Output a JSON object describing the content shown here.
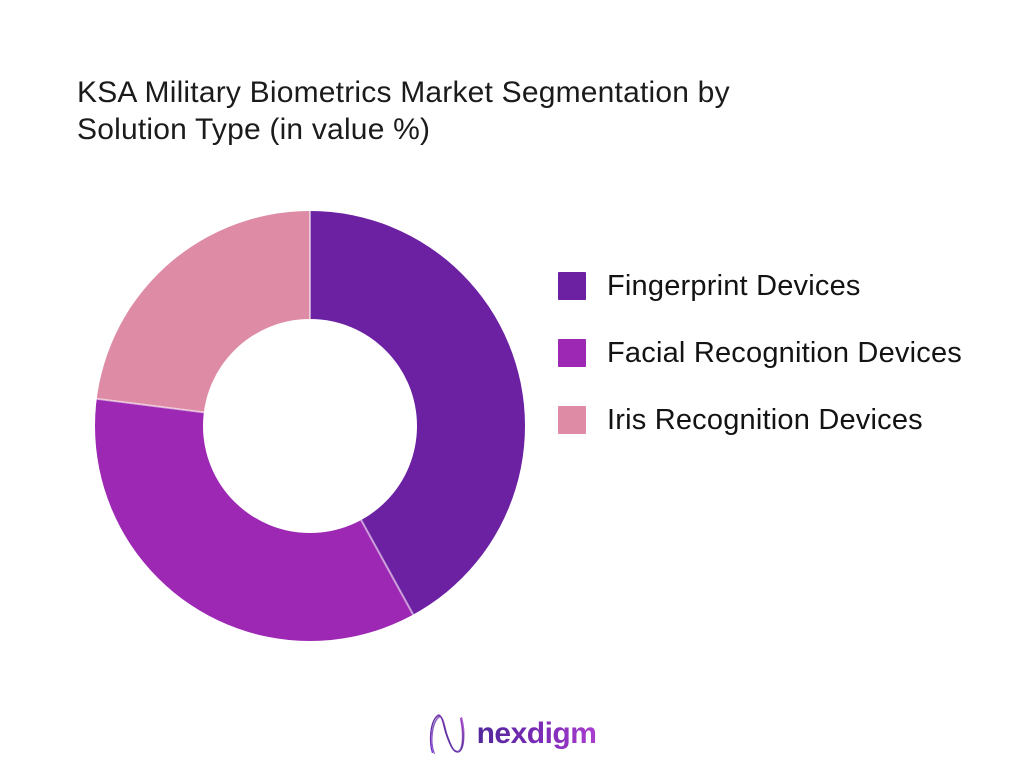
{
  "title": {
    "line1": "KSA Military Biometrics Market Segmentation by",
    "line2": "Solution Type (in value %)"
  },
  "chart_data": {
    "type": "pie",
    "variant": "donut",
    "title": "KSA Military Biometrics Market Segmentation by Solution Type (in value %)",
    "categories": [
      "Fingerprint Devices",
      "Facial Recognition Devices",
      "Iris Recognition Devices"
    ],
    "values": [
      42,
      35,
      23
    ],
    "values_are_estimates_from_arc_angles": true,
    "unit": "% of value",
    "colors": [
      "#6b21a2",
      "#9c28b4",
      "#de8ca6"
    ],
    "start_angle": "top",
    "direction": "clockwise",
    "inner_radius_ratio": 0.5,
    "legend_position": "right",
    "data_labels": false
  },
  "legend": {
    "items": [
      {
        "label": "Fingerprint Devices",
        "color": "#6b21a2"
      },
      {
        "label": "Facial Recognition Devices",
        "color": "#9c28b4"
      },
      {
        "label": "Iris Recognition Devices",
        "color": "#de8ca6"
      }
    ]
  },
  "footer": {
    "brand_name": "nexdigm",
    "brand_gradient_start": "#50289a",
    "brand_gradient_end": "#a93ecf"
  }
}
